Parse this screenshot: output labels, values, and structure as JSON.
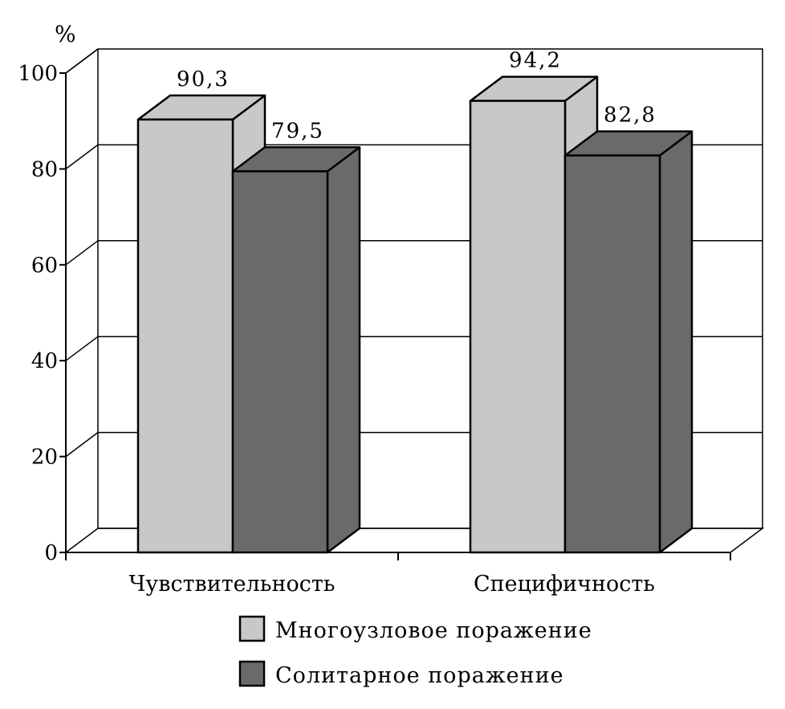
{
  "chart_data": {
    "type": "bar",
    "ylabel": "%",
    "ylim": [
      0,
      100
    ],
    "yticks": [
      "0",
      "20",
      "40",
      "60",
      "80",
      "100"
    ],
    "categories": [
      "Чувствительность",
      "Специфичность"
    ],
    "series": [
      {
        "name": "Многоузловое поражение",
        "values": [
          90.3,
          94.2
        ],
        "labels": [
          "90,3",
          "94,2"
        ],
        "color": "#c8c8c8"
      },
      {
        "name": "Солитарное поражение",
        "values": [
          79.5,
          82.8
        ],
        "labels": [
          "79,5",
          "82,8"
        ],
        "color": "#6a6a6a"
      }
    ],
    "grid": true,
    "three_d": true,
    "legend_position": "bottom"
  }
}
